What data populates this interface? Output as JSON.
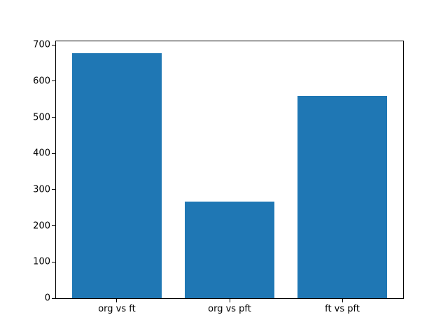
{
  "chart_data": {
    "type": "bar",
    "title": "",
    "xlabel": "",
    "ylabel": "",
    "categories": [
      "org vs ft",
      "org vs pft",
      "ft vs pft"
    ],
    "values": [
      678,
      267,
      559
    ],
    "yticks": [
      0,
      100,
      200,
      300,
      400,
      500,
      600,
      700
    ],
    "ylim": [
      0,
      710
    ],
    "xlim": [
      -0.54,
      2.54
    ],
    "bar_width": 0.8,
    "bar_color": "#1f77b4",
    "spine_color": "#000000",
    "tick_color": "#000000",
    "background_color": "#ffffff",
    "grid": false,
    "legend": null
  }
}
